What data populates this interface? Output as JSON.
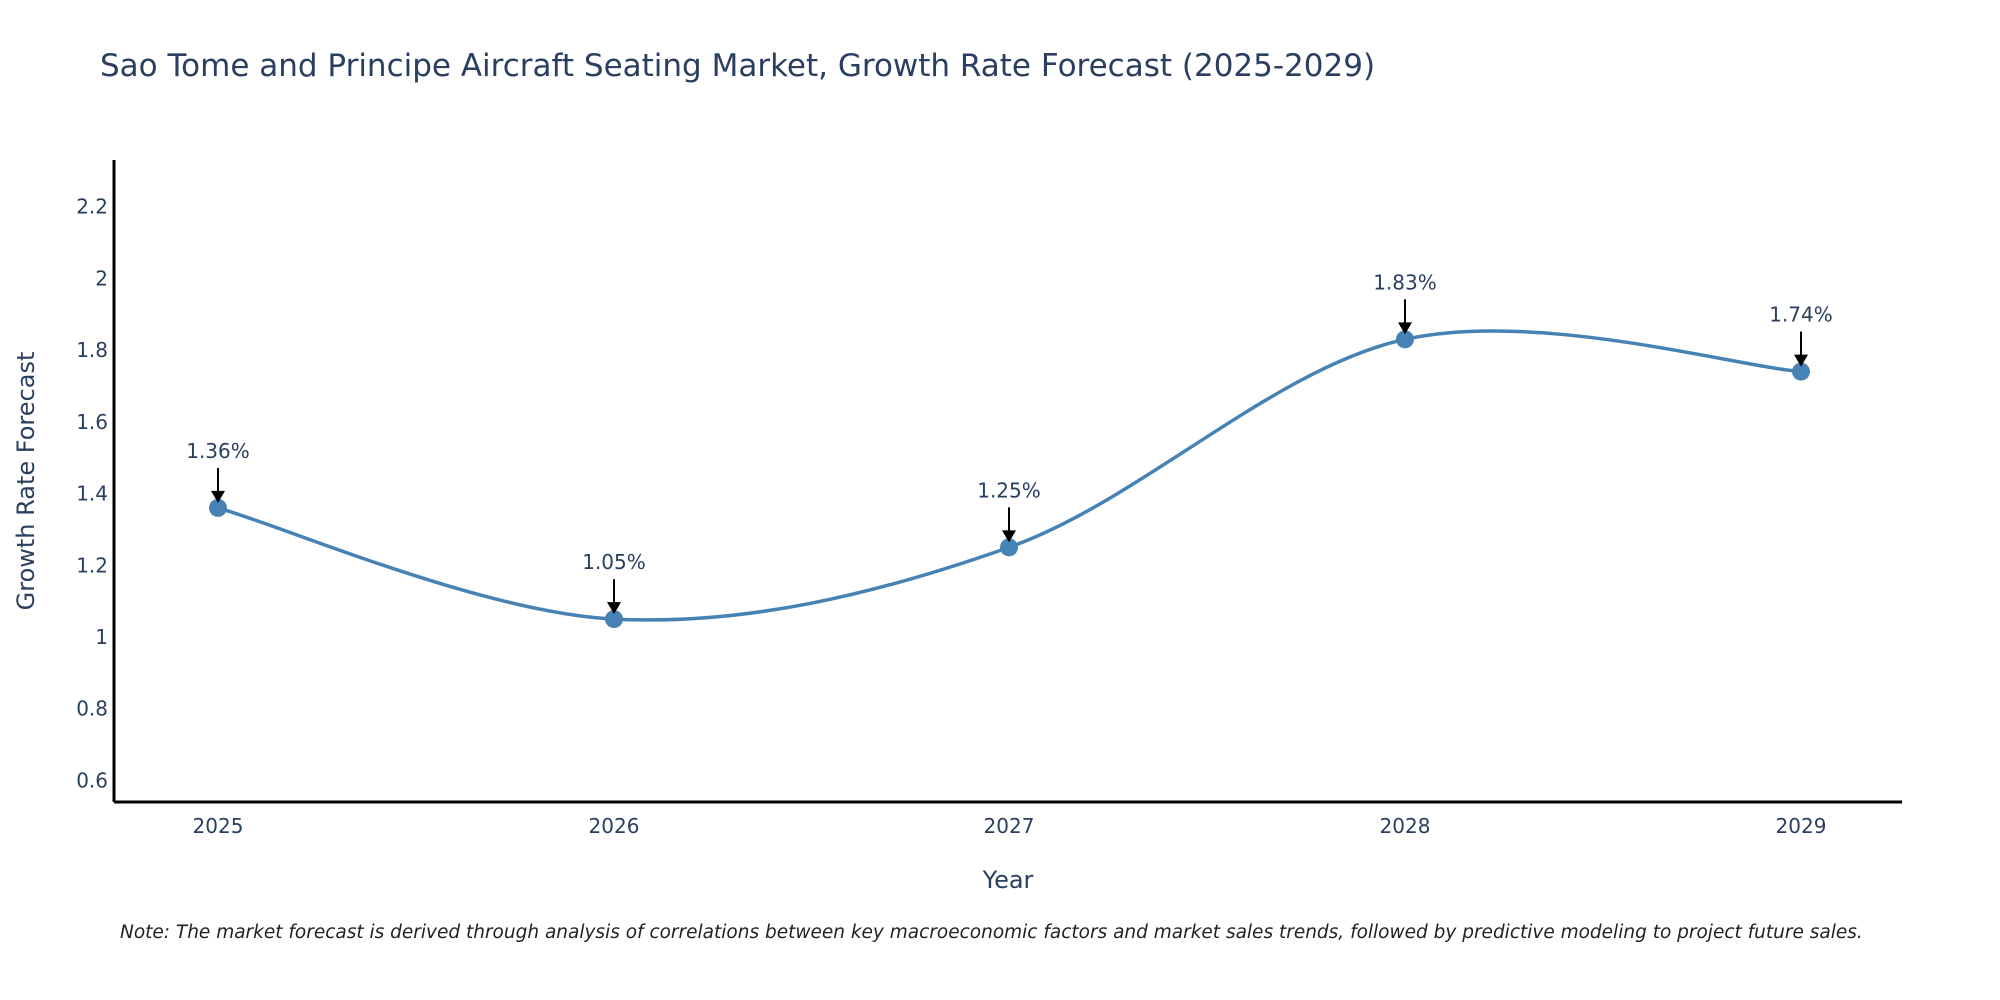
{
  "chart_data": {
    "type": "line",
    "title": "Sao Tome and Principe Aircraft Seating Market, Growth Rate Forecast (2025-2029)",
    "xlabel": "Year",
    "ylabel": "Growth Rate Forecast",
    "categories": [
      "2025",
      "2026",
      "2027",
      "2028",
      "2029"
    ],
    "series": [
      {
        "name": "Growth Rate Forecast",
        "values": [
          1.36,
          1.05,
          1.25,
          1.83,
          1.74
        ]
      }
    ],
    "data_labels": [
      "1.36%",
      "1.05%",
      "1.25%",
      "1.83%",
      "1.74%"
    ],
    "y_ticks": [
      0.6,
      0.8,
      1,
      1.2,
      1.4,
      1.6,
      1.8,
      2,
      2.2
    ],
    "y_tick_labels": [
      "0.6",
      "0.8",
      "1",
      "1.2",
      "1.4",
      "1.6",
      "1.8",
      "2",
      "2.2"
    ],
    "ylim": [
      0.54,
      2.33
    ],
    "grid": false,
    "line_color": "#4682b4",
    "marker_color": "#4682b4",
    "note": "Note: The market forecast is derived through analysis of correlations between key macroeconomic factors and market sales trends, followed by predictive modeling to project future sales."
  }
}
